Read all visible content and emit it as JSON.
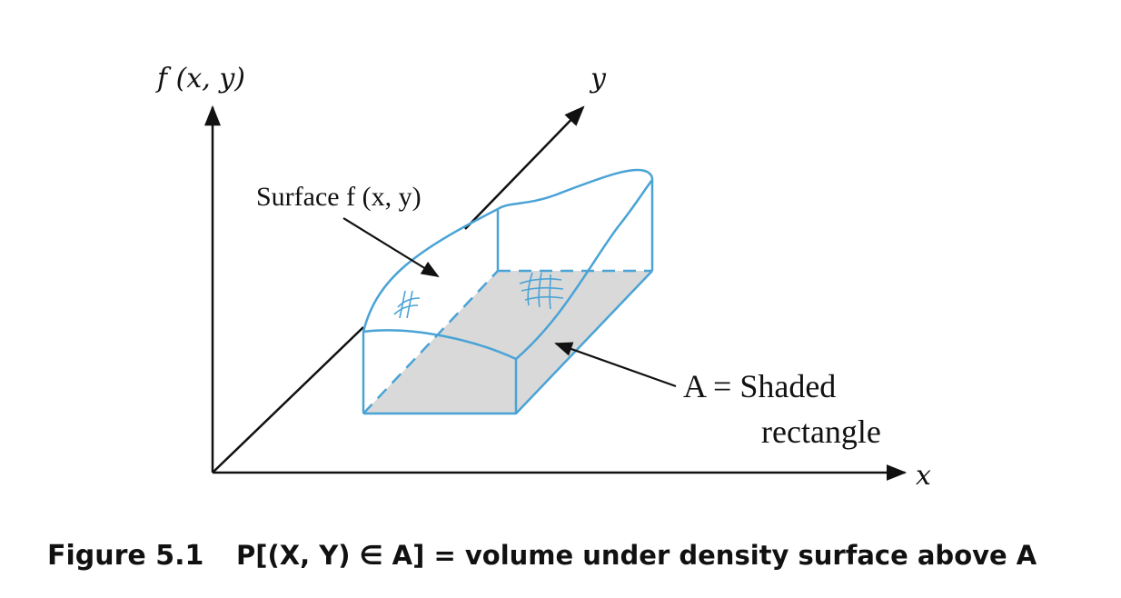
{
  "axes": {
    "z_label": "f (x, y)",
    "y_label": "y",
    "x_label": "x"
  },
  "annotations": {
    "surface_label": "Surface f (x, y)",
    "region_label_line1": "A = Shaded",
    "region_label_line2": "rectangle"
  },
  "caption": {
    "number": "Figure 5.1",
    "text": "P[(X, Y) ∈ A] = volume under density surface above A"
  },
  "colors": {
    "surface_outline": "#4aa3d6",
    "shaded_region": "#d9d9d9",
    "axis": "#111111"
  }
}
